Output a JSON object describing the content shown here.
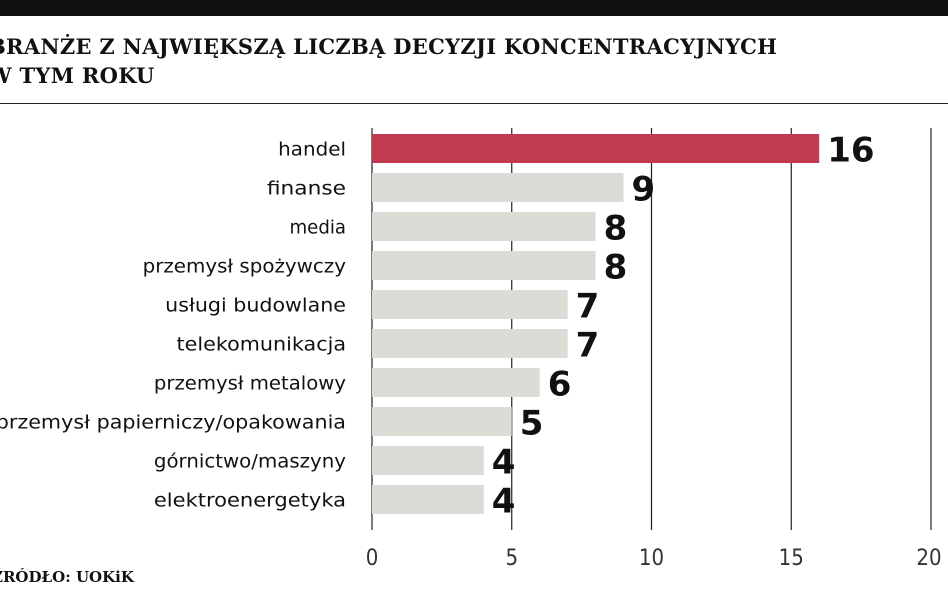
{
  "title_lines": [
    "BRANŻE Z NAJWIĘKSZĄ LICZBĄ DECYZJI KONCENTRACYJNYCH",
    "W TYM ROKU"
  ],
  "source": "ŹRÓDŁO: UOKiK",
  "colors": {
    "highlight": "#c23a50",
    "bar": "#dcdbd6",
    "gridline": "#222222",
    "text": "#111111"
  },
  "chart_data": {
    "type": "bar",
    "orientation": "horizontal",
    "title": "BRANŻE Z NAJWIĘKSZĄ LICZBĄ DECYZJI KONCENTRACYJNYCH W TYM ROKU",
    "categories": [
      "handel",
      "finanse",
      "media",
      "przemysł spożywczy",
      "usługi budowlane",
      "telekomunikacja",
      "przemysł metalowy",
      "przemysł papierniczy/opakowania",
      "górnictwo/maszyny",
      "elektroenergetyka"
    ],
    "values": [
      16,
      9,
      8,
      8,
      7,
      7,
      6,
      5,
      4,
      4
    ],
    "highlight_index": 0,
    "xlim": [
      0,
      20
    ],
    "xticks": [
      0,
      5,
      10,
      15,
      20
    ],
    "grid": "vertical",
    "legend": "none"
  }
}
